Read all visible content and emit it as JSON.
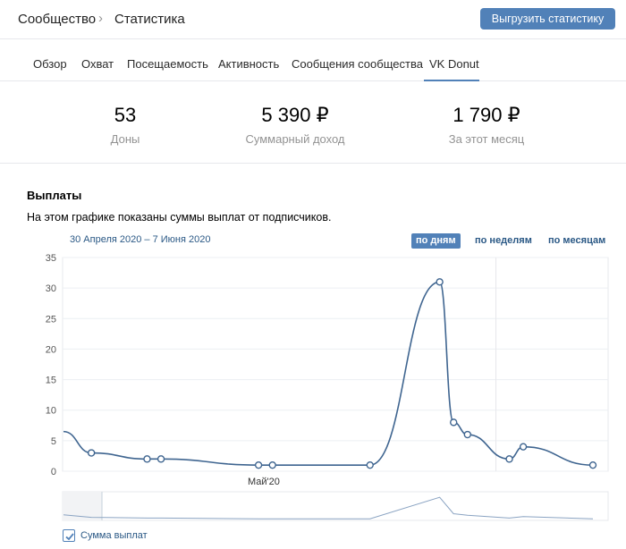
{
  "header": {
    "breadcrumb_root": "Сообщество",
    "breadcrumb_sep": "›",
    "breadcrumb_current": "Статистика",
    "export_button": "Выгрузить статистику"
  },
  "tabs": [
    {
      "label": "Обзор"
    },
    {
      "label": "Охват"
    },
    {
      "label": "Посещаемость"
    },
    {
      "label": "Активность"
    },
    {
      "label": "Сообщения сообщества"
    },
    {
      "label": "VK Donut",
      "active": true
    }
  ],
  "kpis": [
    {
      "value": "53",
      "label": "Доны"
    },
    {
      "value": "5 390 ₽",
      "label": "Суммарный доход"
    },
    {
      "value": "1 790 ₽",
      "label": "За этот месяц"
    }
  ],
  "section": {
    "title": "Выплаты",
    "description": "На этом графике показаны суммы выплат от подписчиков.",
    "date_range": "30 Апреля 2020 – 7 Июня 2020",
    "period_options": [
      "по дням",
      "по неделям",
      "по месяцам"
    ],
    "period_selected": "по дням"
  },
  "colors": {
    "accent": "#5181b8",
    "line": "#3f6590",
    "link": "#2a5885"
  },
  "chart_data": {
    "type": "line",
    "ylim": [
      0,
      35
    ],
    "y_ticks": [
      0,
      5,
      10,
      15,
      20,
      25,
      30,
      35
    ],
    "x_tick_labels": [
      "Май'20"
    ],
    "series": [
      {
        "name": "Сумма выплат",
        "x": [
          "2020-04-30",
          "2020-05-02",
          "2020-05-06",
          "2020-05-07",
          "2020-05-14",
          "2020-05-15",
          "2020-05-22",
          "2020-05-27",
          "2020-05-28",
          "2020-05-29",
          "2020-06-01",
          "2020-06-02",
          "2020-06-07"
        ],
        "values": [
          6.5,
          3,
          2,
          2,
          1,
          1,
          1,
          31,
          8,
          6,
          2,
          4,
          1
        ]
      }
    ],
    "legend": [
      {
        "label": "Сумма выплат",
        "checked": true
      }
    ]
  }
}
